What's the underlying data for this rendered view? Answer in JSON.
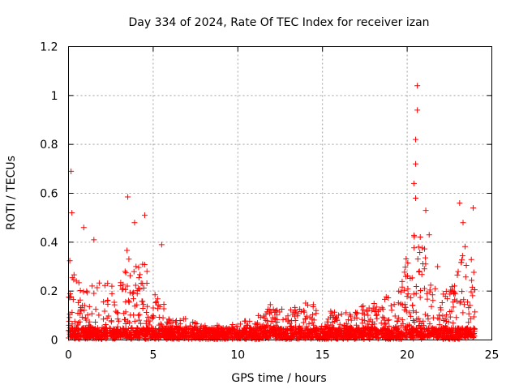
{
  "chart_data": {
    "type": "scatter",
    "title": "Day 334 of 2024, Rate Of TEC Index for receiver izan",
    "xlabel": "GPS time / hours",
    "ylabel": "ROTI / TECUs",
    "xlim": [
      0,
      25
    ],
    "ylim": [
      0,
      1.2
    ],
    "x_ticks": [
      0,
      5,
      10,
      15,
      20,
      25
    ],
    "y_ticks": [
      0,
      0.2,
      0.4,
      0.6,
      0.8,
      1.0,
      1.2
    ],
    "x_tick_labels": [
      "0",
      "5",
      "10",
      "15",
      "20",
      "25"
    ],
    "y_tick_labels": [
      "0",
      "0.2",
      "0.4",
      "0.6",
      "0.8",
      "1",
      "1.2"
    ],
    "grid": true,
    "marker": "+",
    "series_color": "#ff0000",
    "x_range_hours": [
      0,
      24
    ],
    "envelope": {
      "description": "approximate upper envelope of dense ROTI cloud (hour, ROTI)",
      "points": [
        [
          0,
          0.37
        ],
        [
          0.5,
          0.25
        ],
        [
          1,
          0.2
        ],
        [
          1.5,
          0.25
        ],
        [
          2,
          0.26
        ],
        [
          2.5,
          0.22
        ],
        [
          3,
          0.3
        ],
        [
          3.5,
          0.4
        ],
        [
          4,
          0.3
        ],
        [
          4.5,
          0.33
        ],
        [
          5,
          0.2
        ],
        [
          5.5,
          0.2
        ],
        [
          6,
          0.08
        ],
        [
          7,
          0.09
        ],
        [
          8,
          0.06
        ],
        [
          9,
          0.06
        ],
        [
          10,
          0.08
        ],
        [
          11,
          0.1
        ],
        [
          12,
          0.15
        ],
        [
          13,
          0.12
        ],
        [
          14,
          0.17
        ],
        [
          15,
          0.12
        ],
        [
          16,
          0.12
        ],
        [
          17,
          0.12
        ],
        [
          18,
          0.18
        ],
        [
          19,
          0.18
        ],
        [
          19.5,
          0.2
        ],
        [
          20,
          0.35
        ],
        [
          20.5,
          0.45
        ],
        [
          21,
          0.4
        ],
        [
          21.5,
          0.25
        ],
        [
          22,
          0.2
        ],
        [
          22.5,
          0.2
        ],
        [
          23,
          0.3
        ],
        [
          23.5,
          0.4
        ],
        [
          24,
          0.3
        ]
      ]
    },
    "notable_points": [
      {
        "x": 0.15,
        "y": 0.69
      },
      {
        "x": 0.2,
        "y": 0.52
      },
      {
        "x": 0.9,
        "y": 0.46
      },
      {
        "x": 1.5,
        "y": 0.41
      },
      {
        "x": 3.5,
        "y": 0.585
      },
      {
        "x": 3.9,
        "y": 0.48
      },
      {
        "x": 4.5,
        "y": 0.51
      },
      {
        "x": 5.5,
        "y": 0.39
      },
      {
        "x": 20.6,
        "y": 1.04
      },
      {
        "x": 20.6,
        "y": 0.94
      },
      {
        "x": 20.5,
        "y": 0.82
      },
      {
        "x": 20.5,
        "y": 0.72
      },
      {
        "x": 20.4,
        "y": 0.64
      },
      {
        "x": 20.5,
        "y": 0.58
      },
      {
        "x": 21.1,
        "y": 0.53
      },
      {
        "x": 21.3,
        "y": 0.43
      },
      {
        "x": 23.1,
        "y": 0.56
      },
      {
        "x": 23.9,
        "y": 0.54
      },
      {
        "x": 23.3,
        "y": 0.48
      },
      {
        "x": 21.8,
        "y": 0.3
      }
    ]
  }
}
